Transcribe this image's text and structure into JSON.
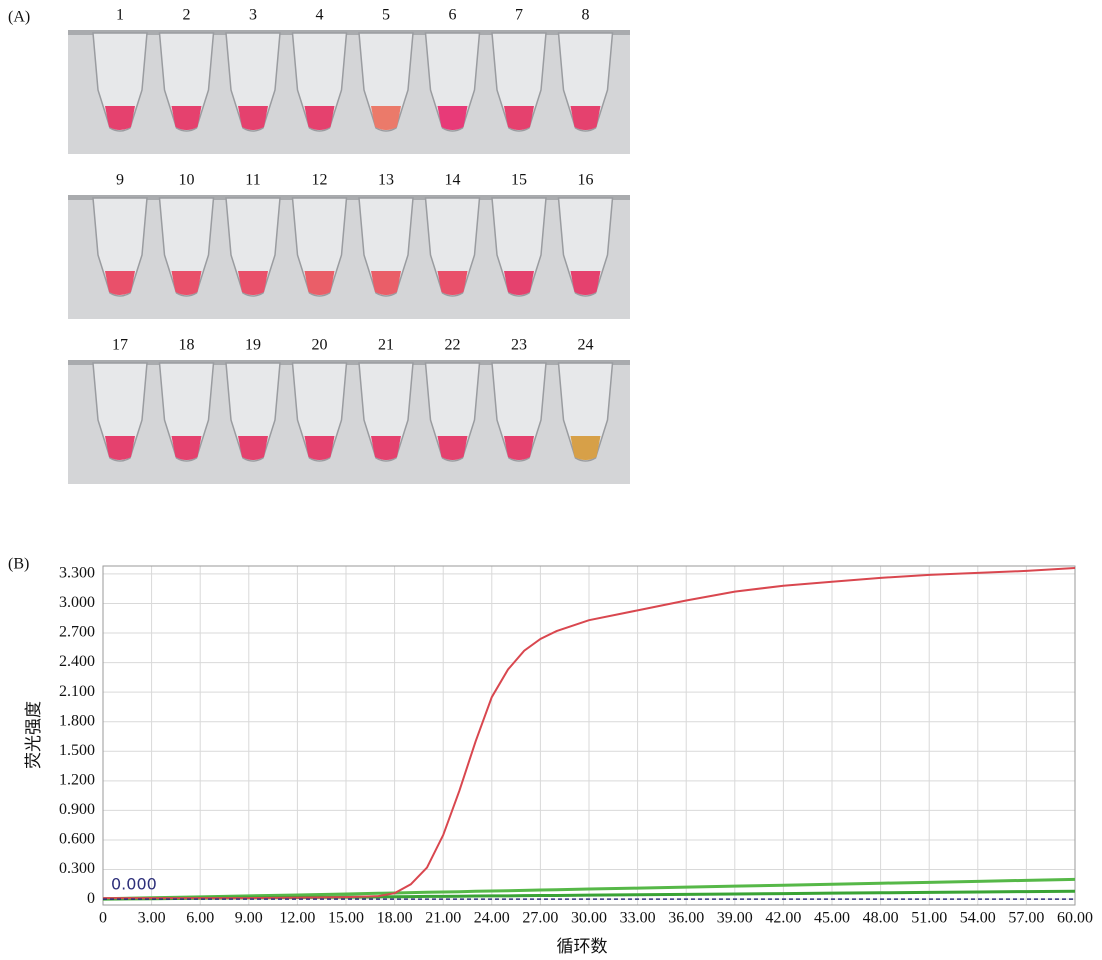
{
  "panel_a": {
    "label": "(A)",
    "tubes": [
      {
        "label": "1",
        "color": "#e5416e"
      },
      {
        "label": "2",
        "color": "#e5416e"
      },
      {
        "label": "3",
        "color": "#e5416e"
      },
      {
        "label": "4",
        "color": "#e5416e"
      },
      {
        "label": "5",
        "color": "#eb7a6a"
      },
      {
        "label": "6",
        "color": "#e83a78"
      },
      {
        "label": "7",
        "color": "#e5416e"
      },
      {
        "label": "8",
        "color": "#e5416e"
      },
      {
        "label": "9",
        "color": "#e9506a"
      },
      {
        "label": "10",
        "color": "#e9506a"
      },
      {
        "label": "11",
        "color": "#e9506a"
      },
      {
        "label": "12",
        "color": "#ea5e68"
      },
      {
        "label": "13",
        "color": "#ea5e68"
      },
      {
        "label": "14",
        "color": "#e9506a"
      },
      {
        "label": "15",
        "color": "#e5416e"
      },
      {
        "label": "16",
        "color": "#e5416e"
      },
      {
        "label": "17",
        "color": "#e5416e"
      },
      {
        "label": "18",
        "color": "#e5416e"
      },
      {
        "label": "19",
        "color": "#e5416e"
      },
      {
        "label": "20",
        "color": "#e5416e"
      },
      {
        "label": "21",
        "color": "#e5416e"
      },
      {
        "label": "22",
        "color": "#e5416e"
      },
      {
        "label": "23",
        "color": "#e5416e"
      },
      {
        "label": "24",
        "color": "#d7a048"
      }
    ]
  },
  "chart_data": {
    "type": "line",
    "panel_label": "(B)",
    "y_label": "荧光强度",
    "x_label": "循环数",
    "x": [
      0,
      3,
      6,
      9,
      12,
      15,
      17,
      18,
      19,
      20,
      21,
      22,
      23,
      24,
      25,
      26,
      27,
      28,
      30,
      33,
      36,
      39,
      42,
      45,
      48,
      51,
      54,
      57,
      60
    ],
    "series": [
      {
        "color": "#56b848",
        "values": [
          0.003,
          0.013,
          0.023,
          0.033,
          0.042,
          0.052,
          0.059,
          0.062,
          0.065,
          0.069,
          0.072,
          0.075,
          0.079,
          0.082,
          0.085,
          0.088,
          0.092,
          0.095,
          0.102,
          0.111,
          0.121,
          0.131,
          0.141,
          0.151,
          0.161,
          0.17,
          0.18,
          0.19,
          0.2
        ]
      },
      {
        "color": "#3aa335",
        "values": [
          0,
          0.004,
          0.008,
          0.012,
          0.016,
          0.02,
          0.023,
          0.024,
          0.025,
          0.027,
          0.028,
          0.029,
          0.031,
          0.032,
          0.033,
          0.035,
          0.036,
          0.037,
          0.04,
          0.044,
          0.048,
          0.052,
          0.056,
          0.06,
          0.064,
          0.068,
          0.072,
          0.076,
          0.08
        ]
      },
      {
        "color": "#d9474f",
        "values": [
          0.01,
          0.01,
          0.01,
          0.01,
          0.015,
          0.02,
          0.03,
          0.06,
          0.15,
          0.32,
          0.65,
          1.1,
          1.6,
          2.05,
          2.33,
          2.52,
          2.64,
          2.72,
          2.83,
          2.93,
          3.03,
          3.12,
          3.18,
          3.22,
          3.26,
          3.29,
          3.31,
          3.33,
          3.36
        ]
      }
    ],
    "threshold": {
      "value": 0,
      "label": "0.000",
      "color": "#2d2f7a"
    },
    "xlim": [
      0,
      60
    ],
    "ylim": [
      -0.06,
      3.38
    ],
    "xticks": [
      0,
      {
        "value": 3,
        "label": "3.00"
      },
      {
        "value": 6,
        "label": "6.00"
      },
      {
        "value": 9,
        "label": "9.00"
      },
      {
        "value": 12,
        "label": "12.00"
      },
      {
        "value": 15,
        "label": "15.00"
      },
      {
        "value": 18,
        "label": "18.00"
      },
      {
        "value": 21,
        "label": "21.00"
      },
      {
        "value": 24,
        "label": "24.00"
      },
      {
        "value": 27,
        "label": "27.00"
      },
      {
        "value": 30,
        "label": "30.00"
      },
      {
        "value": 33,
        "label": "33.00"
      },
      {
        "value": 36,
        "label": "36.00"
      },
      {
        "value": 39,
        "label": "39.00"
      },
      {
        "value": 42,
        "label": "42.00"
      },
      {
        "value": 45,
        "label": "45.00"
      },
      {
        "value": 48,
        "label": "48.00"
      },
      {
        "value": 51,
        "label": "51.00"
      },
      {
        "value": 54,
        "label": "54.00"
      },
      {
        "value": 57,
        "label": "57.00"
      },
      {
        "value": 60,
        "label": "60.00"
      }
    ],
    "yticks": [
      0,
      {
        "value": 0.3,
        "label": "0.300"
      },
      {
        "value": 0.6,
        "label": "0.600"
      },
      {
        "value": 0.9,
        "label": "0.900"
      },
      {
        "value": 1.2,
        "label": "1.200"
      },
      {
        "value": 1.5,
        "label": "1.500"
      },
      {
        "value": 1.8,
        "label": "1.800"
      },
      {
        "value": 2.1,
        "label": "2.100"
      },
      {
        "value": 2.4,
        "label": "2.400"
      },
      {
        "value": 2.7,
        "label": "2.700"
      },
      {
        "value": 3.0,
        "label": "3.000"
      },
      {
        "value": 3.3,
        "label": "3.300"
      }
    ],
    "grid": true
  }
}
